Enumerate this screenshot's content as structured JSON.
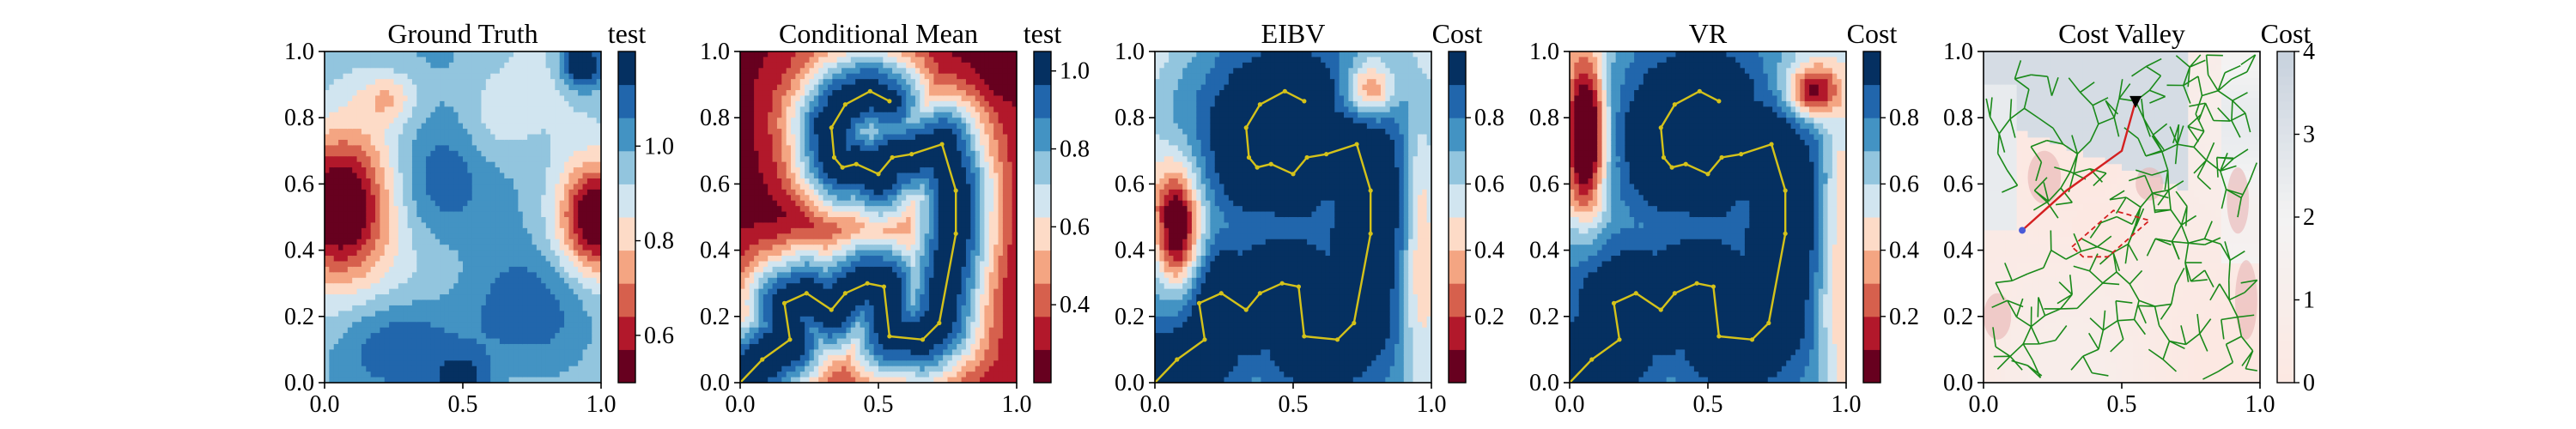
{
  "chart_data": [
    {
      "type": "heatmap",
      "title": "Ground Truth",
      "colorbar_label": "test",
      "colormap": "RdBu (discrete)",
      "xlim": [
        0,
        1
      ],
      "ylim": [
        0,
        1
      ],
      "x_ticks": [
        "0.0",
        "0.5",
        "1.0"
      ],
      "y_ticks": [
        "0.0",
        "0.2",
        "0.4",
        "0.6",
        "0.8",
        "1.0"
      ],
      "colorbar": {
        "min": 0.5,
        "max": 1.2,
        "ticks": [
          0.6,
          0.8,
          1.0
        ],
        "tick_labels": [
          "0.6",
          "0.8",
          "1.0"
        ]
      },
      "features": [
        {
          "kind": "low",
          "x": 0.05,
          "y": 0.52,
          "sx": 0.13,
          "sy": 0.15,
          "amp": -0.55
        },
        {
          "kind": "low",
          "x": 0.98,
          "y": 0.5,
          "sx": 0.09,
          "sy": 0.12,
          "amp": -0.45
        },
        {
          "kind": "low",
          "x": 0.23,
          "y": 0.86,
          "sx": 0.07,
          "sy": 0.05,
          "amp": -0.15
        },
        {
          "kind": "low",
          "x": 0.62,
          "y": 0.78,
          "sx": 0.09,
          "sy": 0.1,
          "amp": -0.08
        },
        {
          "kind": "high",
          "x": 0.93,
          "y": 0.96,
          "sx": 0.05,
          "sy": 0.05,
          "amp": 0.35
        },
        {
          "kind": "high",
          "x": 0.4,
          "y": 0.62,
          "sx": 0.12,
          "sy": 0.15,
          "amp": 0.14
        },
        {
          "kind": "high",
          "x": 0.3,
          "y": 0.12,
          "sx": 0.15,
          "sy": 0.1,
          "amp": 0.14
        },
        {
          "kind": "high",
          "x": 0.7,
          "y": 0.25,
          "sx": 0.18,
          "sy": 0.14,
          "amp": 0.12
        },
        {
          "kind": "high",
          "x": 0.5,
          "y": 0.0,
          "sx": 0.08,
          "sy": 0.06,
          "amp": 0.22
        }
      ],
      "base": 0.95
    },
    {
      "type": "heatmap",
      "title": "Conditional Mean",
      "colorbar_label": "test",
      "colormap": "RdBu (discrete)",
      "xlim": [
        0,
        1
      ],
      "ylim": [
        0,
        1
      ],
      "x_ticks": [
        "0.0",
        "0.5",
        "1.0"
      ],
      "y_ticks": [
        "0.0",
        "0.2",
        "0.4",
        "0.6",
        "0.8",
        "1.0"
      ],
      "colorbar": {
        "min": 0.2,
        "max": 1.05,
        "ticks": [
          0.4,
          0.6,
          0.8,
          1.0
        ],
        "tick_labels": [
          "0.4",
          "0.6",
          "0.8",
          "1.0"
        ]
      },
      "base": 0.25,
      "path": [
        [
          0.0,
          0.0
        ],
        [
          0.08,
          0.07
        ],
        [
          0.18,
          0.13
        ],
        [
          0.16,
          0.24
        ],
        [
          0.24,
          0.27
        ],
        [
          0.33,
          0.22
        ],
        [
          0.38,
          0.27
        ],
        [
          0.46,
          0.3
        ],
        [
          0.52,
          0.29
        ],
        [
          0.54,
          0.14
        ],
        [
          0.66,
          0.13
        ],
        [
          0.72,
          0.18
        ],
        [
          0.78,
          0.45
        ],
        [
          0.78,
          0.58
        ],
        [
          0.73,
          0.72
        ],
        [
          0.62,
          0.69
        ],
        [
          0.55,
          0.68
        ],
        [
          0.5,
          0.63
        ],
        [
          0.42,
          0.66
        ],
        [
          0.37,
          0.65
        ],
        [
          0.34,
          0.68
        ],
        [
          0.33,
          0.77
        ],
        [
          0.38,
          0.84
        ],
        [
          0.47,
          0.88
        ],
        [
          0.54,
          0.85
        ]
      ]
    },
    {
      "type": "heatmap",
      "title": "EIBV",
      "colorbar_label": "Cost",
      "colormap": "RdBu (discrete)",
      "xlim": [
        0,
        1
      ],
      "ylim": [
        0,
        1
      ],
      "x_ticks": [
        "0.0",
        "0.5",
        "1.0"
      ],
      "y_ticks": [
        "0.0",
        "0.2",
        "0.4",
        "0.6",
        "0.8",
        "1.0"
      ],
      "colorbar": {
        "min": 0.0,
        "max": 1.0,
        "ticks": [
          0.2,
          0.4,
          0.6,
          0.8
        ],
        "tick_labels": [
          "0.2",
          "0.4",
          "0.6",
          "0.8"
        ]
      },
      "base": 0.7,
      "features": [
        {
          "kind": "low",
          "x": 0.08,
          "y": 0.45,
          "sx": 0.06,
          "sy": 0.14,
          "amp": -0.8
        },
        {
          "kind": "low",
          "x": 0.78,
          "y": 0.88,
          "sx": 0.06,
          "sy": 0.06,
          "amp": -0.5
        },
        {
          "kind": "low",
          "x": 0.96,
          "y": 0.3,
          "sx": 0.05,
          "sy": 0.22,
          "amp": -0.3
        },
        {
          "kind": "low",
          "x": 0.96,
          "y": 0.6,
          "sx": 0.04,
          "sy": 0.18,
          "amp": -0.2
        }
      ],
      "path": [
        [
          0.0,
          0.0
        ],
        [
          0.08,
          0.07
        ],
        [
          0.18,
          0.13
        ],
        [
          0.16,
          0.24
        ],
        [
          0.24,
          0.27
        ],
        [
          0.33,
          0.22
        ],
        [
          0.38,
          0.27
        ],
        [
          0.46,
          0.3
        ],
        [
          0.52,
          0.29
        ],
        [
          0.54,
          0.14
        ],
        [
          0.66,
          0.13
        ],
        [
          0.72,
          0.18
        ],
        [
          0.78,
          0.45
        ],
        [
          0.78,
          0.58
        ],
        [
          0.73,
          0.72
        ],
        [
          0.62,
          0.69
        ],
        [
          0.55,
          0.68
        ],
        [
          0.5,
          0.63
        ],
        [
          0.42,
          0.66
        ],
        [
          0.37,
          0.65
        ],
        [
          0.34,
          0.68
        ],
        [
          0.33,
          0.77
        ],
        [
          0.38,
          0.84
        ],
        [
          0.47,
          0.88
        ],
        [
          0.54,
          0.85
        ]
      ]
    },
    {
      "type": "heatmap",
      "title": "VR",
      "colorbar_label": "Cost",
      "colormap": "RdBu (discrete)",
      "xlim": [
        0,
        1
      ],
      "ylim": [
        0,
        1
      ],
      "x_ticks": [
        "0.0",
        "0.5",
        "1.0"
      ],
      "y_ticks": [
        "0.0",
        "0.2",
        "0.4",
        "0.6",
        "0.8",
        "1.0"
      ],
      "colorbar": {
        "min": 0.0,
        "max": 1.0,
        "ticks": [
          0.2,
          0.4,
          0.6,
          0.8
        ],
        "tick_labels": [
          "0.2",
          "0.4",
          "0.6",
          "0.8"
        ]
      },
      "base": 0.7,
      "features": [
        {
          "kind": "low",
          "x": 0.06,
          "y": 0.75,
          "sx": 0.05,
          "sy": 0.16,
          "amp": -0.9
        },
        {
          "kind": "low",
          "x": 0.88,
          "y": 0.88,
          "sx": 0.07,
          "sy": 0.06,
          "amp": -0.7
        },
        {
          "kind": "low",
          "x": 0.97,
          "y": 0.3,
          "sx": 0.05,
          "sy": 0.25,
          "amp": -0.35
        },
        {
          "kind": "low",
          "x": 0.98,
          "y": 0.65,
          "sx": 0.04,
          "sy": 0.12,
          "amp": -0.2
        }
      ],
      "path": [
        [
          0.0,
          0.0
        ],
        [
          0.08,
          0.07
        ],
        [
          0.18,
          0.13
        ],
        [
          0.16,
          0.24
        ],
        [
          0.24,
          0.27
        ],
        [
          0.33,
          0.22
        ],
        [
          0.38,
          0.27
        ],
        [
          0.46,
          0.3
        ],
        [
          0.52,
          0.29
        ],
        [
          0.54,
          0.14
        ],
        [
          0.66,
          0.13
        ],
        [
          0.72,
          0.18
        ],
        [
          0.78,
          0.45
        ],
        [
          0.78,
          0.58
        ],
        [
          0.73,
          0.72
        ],
        [
          0.62,
          0.69
        ],
        [
          0.55,
          0.68
        ],
        [
          0.5,
          0.63
        ],
        [
          0.42,
          0.66
        ],
        [
          0.37,
          0.65
        ],
        [
          0.34,
          0.68
        ],
        [
          0.33,
          0.77
        ],
        [
          0.38,
          0.84
        ],
        [
          0.47,
          0.88
        ],
        [
          0.54,
          0.85
        ]
      ]
    },
    {
      "type": "heatmap",
      "title": "Cost Valley",
      "colorbar_label": "Cost",
      "colormap": "Reds-to-gray (continuous)",
      "xlim": [
        0,
        1
      ],
      "ylim": [
        0,
        1
      ],
      "x_ticks": [
        "0.0",
        "0.5",
        "1.0"
      ],
      "y_ticks": [
        "0.0",
        "0.2",
        "0.4",
        "0.6",
        "0.8",
        "1.0"
      ],
      "colorbar": {
        "min": 0,
        "max": 4,
        "ticks": [
          0,
          1,
          2,
          3,
          4
        ],
        "tick_labels": [
          "0",
          "1",
          "2",
          "3",
          "4"
        ]
      },
      "current_location": [
        0.55,
        0.85
      ],
      "planned_path": [
        [
          0.55,
          0.85
        ],
        [
          0.5,
          0.7
        ],
        [
          0.4,
          0.64
        ],
        [
          0.3,
          0.58
        ],
        [
          0.22,
          0.52
        ],
        [
          0.14,
          0.46
        ]
      ],
      "candidate_polygon": [
        [
          0.32,
          0.41
        ],
        [
          0.47,
          0.52
        ],
        [
          0.6,
          0.49
        ],
        [
          0.45,
          0.38
        ],
        [
          0.36,
          0.38
        ]
      ]
    }
  ]
}
